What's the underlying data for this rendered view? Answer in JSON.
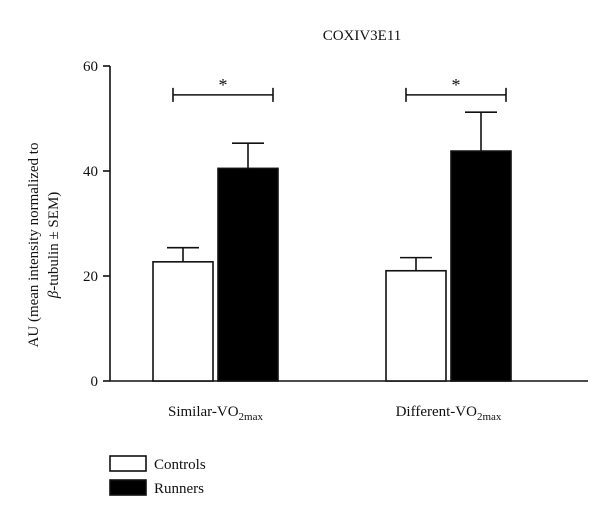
{
  "chart_data": {
    "type": "bar",
    "title": "COXIV3E11",
    "ylabel_line1": "AU (mean intensity normalized to",
    "ylabel_line2_greek": "β",
    "ylabel_line2_rest": "-tubulin ± SEM)",
    "ylim": [
      0,
      60
    ],
    "yticks": [
      "0",
      "20",
      "40",
      "60"
    ],
    "categories": [
      {
        "base": "Similar-VO",
        "sub": "2max"
      },
      {
        "base": "Different-VO",
        "sub": "2max"
      }
    ],
    "series": [
      {
        "name": "Controls",
        "color": "#ffffff",
        "values": [
          22.7,
          21.0
        ],
        "sem": [
          2.7,
          2.5
        ]
      },
      {
        "name": "Runners",
        "color": "#000000",
        "values": [
          40.5,
          43.8
        ],
        "sem": [
          4.8,
          7.4
        ]
      }
    ],
    "significance": [
      {
        "category_index": 0,
        "label": "*",
        "y": 54.5
      },
      {
        "category_index": 1,
        "label": "*",
        "y": 54.5
      }
    ],
    "legend_position": "bottom-left",
    "grid": false
  }
}
